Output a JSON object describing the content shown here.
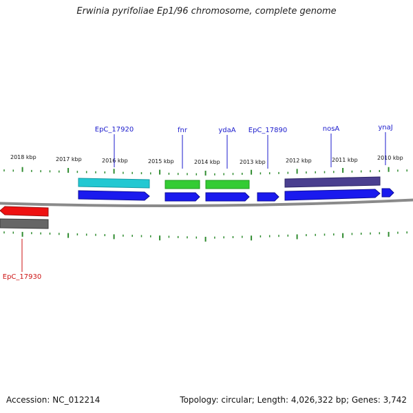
{
  "title": "Erwinia pyrifoliae Ep1/96 chromosome, complete genome",
  "footer": {
    "accession": "Accession: NC_012214",
    "summary": "Topology: circular; Length: 4,026,322 bp; Genes: 3,742"
  },
  "colors": {
    "background": "#ffffff",
    "tick": "#2e8b2e",
    "label_gene": "#1a1acc",
    "label_red": "#cc1111",
    "backbone": "#888888",
    "cds": "#1a1aee",
    "gene_cyan": "#22c8d2",
    "gene_green": "#33cc33",
    "gene_purple": "#4a3f8f",
    "gene_red": "#ee1111",
    "gene_gray": "#666666"
  },
  "scale_labels": [
    {
      "text": "2018 kbp",
      "kbp": 2018
    },
    {
      "text": "2017 kbp",
      "kbp": 2017
    },
    {
      "text": "2016 kbp",
      "kbp": 2016
    },
    {
      "text": "2015 kbp",
      "kbp": 2015
    },
    {
      "text": "2014 kbp",
      "kbp": 2014
    },
    {
      "text": "2013 kbp",
      "kbp": 2013
    },
    {
      "text": "2012 kbp",
      "kbp": 2012
    },
    {
      "text": "2011 kbp",
      "kbp": 2011
    },
    {
      "text": "2010 kbp",
      "kbp": 2010
    }
  ],
  "gene_labels": [
    {
      "text": "EpC_17920",
      "color": "#1a1acc"
    },
    {
      "text": "fnr",
      "color": "#1a1acc"
    },
    {
      "text": "ydaA",
      "color": "#1a1acc"
    },
    {
      "text": "EpC_17890",
      "color": "#1a1acc"
    },
    {
      "text": "nosA",
      "color": "#1a1acc"
    },
    {
      "text": "ynaJ",
      "color": "#1a1acc"
    },
    {
      "text": "EpC_17930",
      "color": "#cc1111"
    }
  ]
}
